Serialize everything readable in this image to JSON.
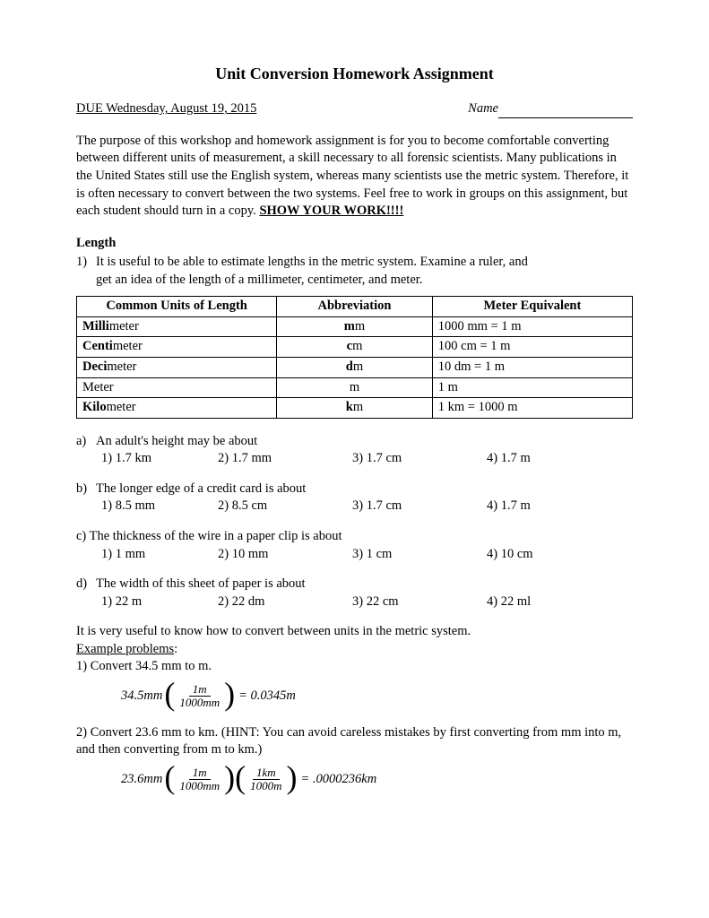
{
  "title": "Unit Conversion Homework Assignment",
  "due": "DUE Wednesday, August 19, 2015",
  "name_label": "Name",
  "purpose": "The purpose of this workshop and homework assignment is for you to become comfortable converting between different units of measurement, a skill necessary to all forensic scientists.  Many publications in the United States still use the English system, whereas many scientists use the metric system.  Therefore, it is often necessary to convert between the two systems.  Feel free to work in groups on this assignment, but each student should turn in a copy.  ",
  "show_work": "SHOW YOUR WORK!!!!",
  "length_head": "Length",
  "q1_intro": "It is useful to be able to estimate lengths in the metric system.  Examine a ruler, and get an idea of the length of a millimeter, centimeter, and meter.",
  "table": {
    "headers": [
      "Common Units of Length",
      "Abbreviation",
      "Meter Equivalent"
    ],
    "rows": [
      {
        "name_prefix": "Milli",
        "name_rest": "meter",
        "abbr_prefix": "m",
        "abbr_rest": "m",
        "equiv": "1000 mm = 1 m"
      },
      {
        "name_prefix": "Centi",
        "name_rest": "meter",
        "abbr_prefix": "c",
        "abbr_rest": "m",
        "equiv": "100 cm = 1 m"
      },
      {
        "name_prefix": "Deci",
        "name_rest": "meter",
        "abbr_prefix": "d",
        "abbr_rest": "m",
        "equiv": "10 dm = 1 m"
      },
      {
        "name_prefix": "",
        "name_rest": "Meter",
        "abbr_prefix": "",
        "abbr_rest": "m",
        "equiv": "1 m"
      },
      {
        "name_prefix": "Kilo",
        "name_rest": "meter",
        "abbr_prefix": "k",
        "abbr_rest": "m",
        "equiv": "1 km = 1000 m"
      }
    ]
  },
  "questions": [
    {
      "label": "a)",
      "text": "An adult's height may be about",
      "opts": [
        "1) 1.7 km",
        "2) 1.7 mm",
        "3) 1.7 cm",
        "4) 1.7 m"
      ]
    },
    {
      "label": "b)",
      "text": "The longer edge of a credit card is about",
      "opts": [
        "1) 8.5 mm",
        "2) 8.5 cm",
        "3) 1.7 cm",
        "4) 1.7 m"
      ]
    },
    {
      "label": "c)",
      "text": "The thickness of the wire in a paper clip is about",
      "opts": [
        "1) 1 mm",
        "2) 10 mm",
        "3) 1 cm",
        "4) 10 cm"
      ],
      "no_indent": true
    },
    {
      "label": "d)",
      "text": "The width of this sheet of paper is about",
      "opts": [
        "1) 22 m",
        "2) 22 dm",
        "3) 22 cm",
        "4) 22 ml"
      ]
    }
  ],
  "useful": "It is very useful to know how to convert between units in the metric system.",
  "example_label": "Example problems",
  "ex1_label": "1) Convert 34.5 mm to m.",
  "ex1": {
    "lead": "34.5mm",
    "fracs": [
      {
        "num": "1m",
        "den": "1000mm"
      }
    ],
    "result": "= 0.0345m"
  },
  "ex2_label": "2) Convert 23.6 mm to km. (HINT: You can avoid careless mistakes by first converting from mm into m, and then converting from m to km.)",
  "ex2": {
    "lead": "23.6mm",
    "fracs": [
      {
        "num": "1m",
        "den": "1000mm"
      },
      {
        "num": "1km",
        "den": "1000m"
      }
    ],
    "result": "= .0000236km"
  }
}
